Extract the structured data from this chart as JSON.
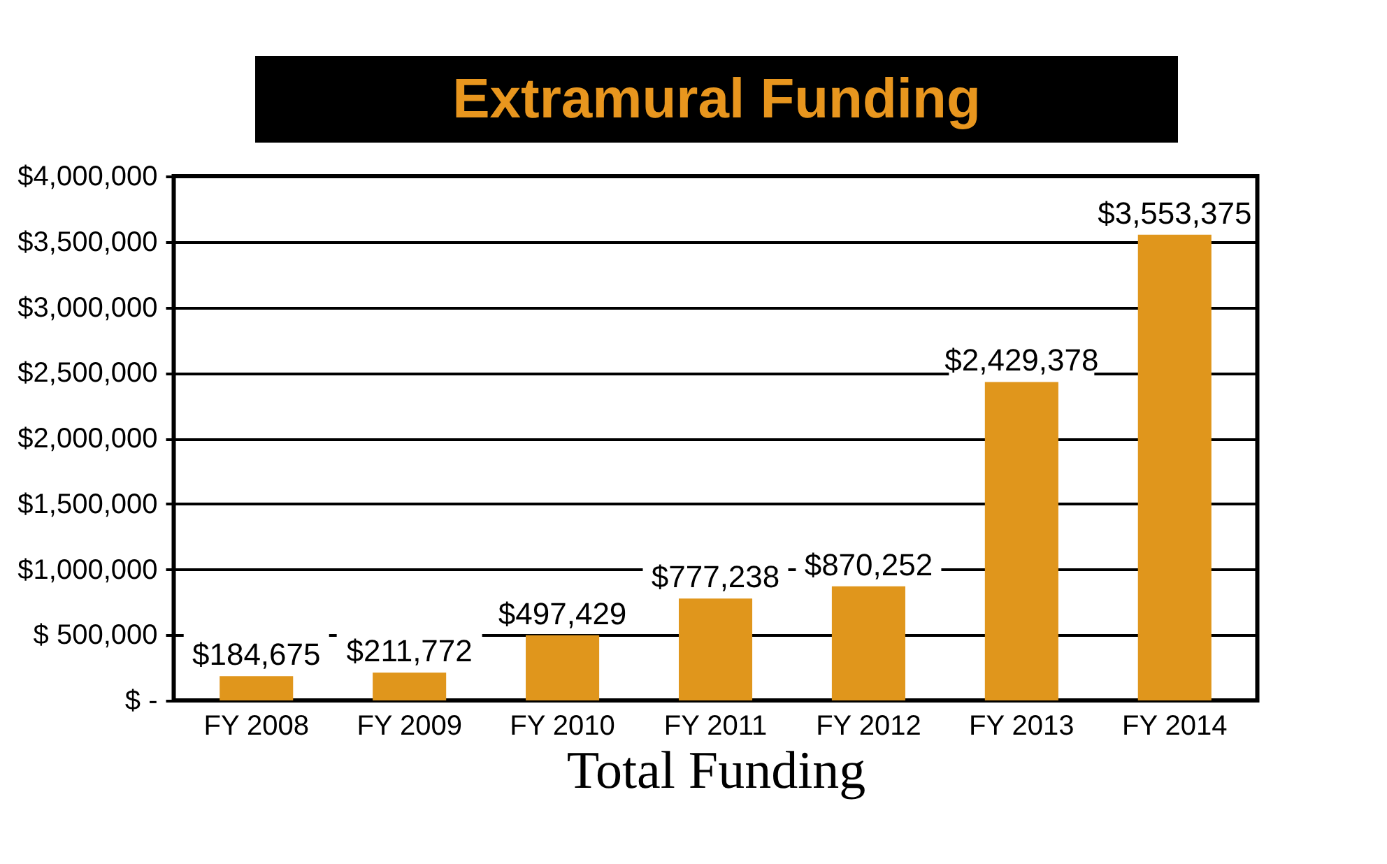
{
  "chart_data": {
    "type": "bar",
    "title": "Extramural Funding",
    "xlabel": "Total Funding",
    "categories": [
      "FY 2008",
      "FY 2009",
      "FY 2010",
      "FY 2011",
      "FY 2012",
      "FY 2013",
      "FY 2014"
    ],
    "values": [
      184675,
      211772,
      497429,
      777238,
      870252,
      2429378,
      3553375
    ],
    "color": "#e0961c",
    "value_labels": [
      "$184,675",
      "$211,772",
      "$497,429",
      "$777,238",
      "$870,252",
      "$2,429,378",
      "$3,553,375"
    ],
    "ylim": [
      0,
      4000000
    ],
    "yticks": [
      {
        "value": 0,
        "label": "$ -"
      },
      {
        "value": 500000,
        "label": "$  500,000"
      },
      {
        "value": 1000000,
        "label": "$1,000,000"
      },
      {
        "value": 1500000,
        "label": "$1,500,000"
      },
      {
        "value": 2000000,
        "label": "$2,000,000"
      },
      {
        "value": 2500000,
        "label": "$2,500,000"
      },
      {
        "value": 3000000,
        "label": "$3,000,000"
      },
      {
        "value": 3500000,
        "label": "$3,500,000"
      },
      {
        "value": 4000000,
        "label": "$4,000,000"
      }
    ],
    "grid": "y"
  }
}
